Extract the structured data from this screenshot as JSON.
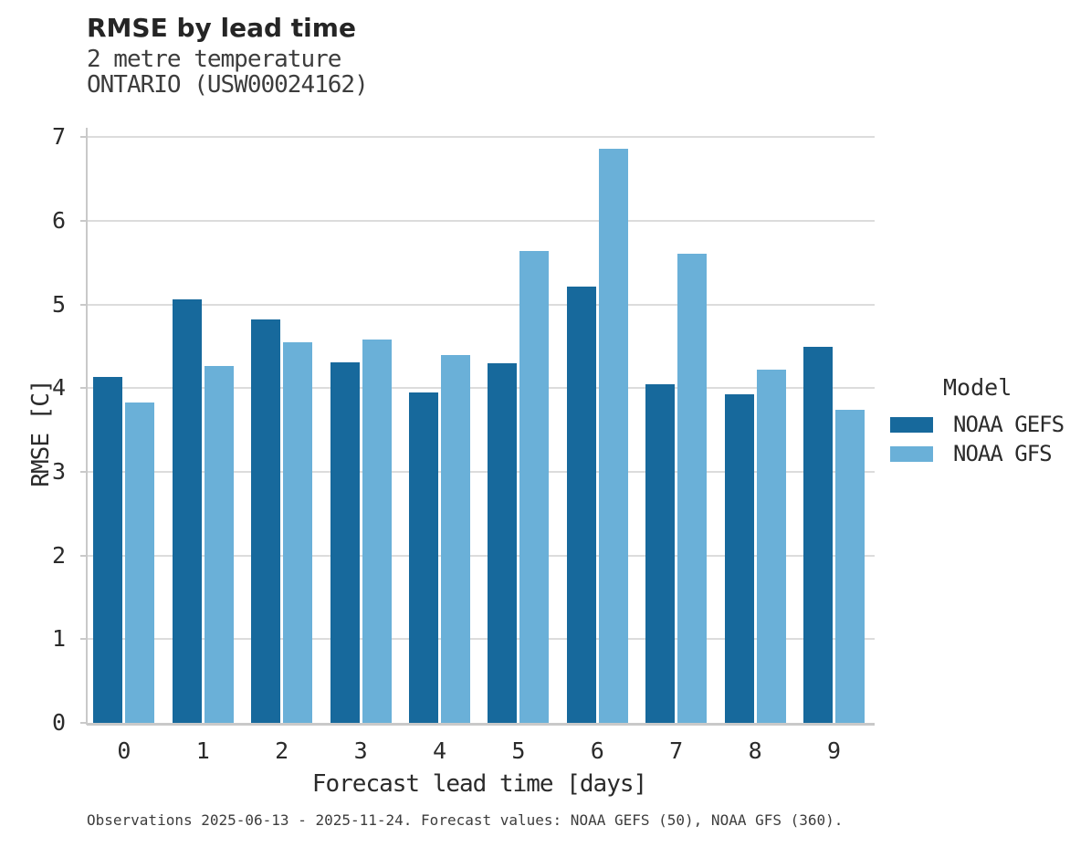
{
  "header": {
    "title": "RMSE by lead time",
    "subtitle_line1": "2 metre temperature",
    "subtitle_line2": "ONTARIO (USW00024162)"
  },
  "caption": "Observations 2025-06-13 - 2025-11-24. Forecast values: NOAA GEFS (50), NOAA GFS (360).",
  "chart_data": {
    "type": "bar",
    "title": "RMSE by lead time",
    "subtitle": [
      "2 metre temperature",
      "ONTARIO (USW00024162)"
    ],
    "xlabel": "Forecast lead time [days]",
    "ylabel": "RMSE [C]",
    "categories": [
      "0",
      "1",
      "2",
      "3",
      "4",
      "5",
      "6",
      "7",
      "8",
      "9"
    ],
    "series": [
      {
        "name": "NOAA GEFS",
        "color": "#17699c",
        "values": [
          4.14,
          5.06,
          4.82,
          4.31,
          3.95,
          4.3,
          5.21,
          4.05,
          3.93,
          4.49
        ]
      },
      {
        "name": "NOAA GFS",
        "color": "#6ab0d8",
        "values": [
          3.83,
          4.27,
          4.55,
          4.58,
          4.4,
          5.64,
          6.86,
          5.61,
          4.22,
          3.74
        ]
      }
    ],
    "ylim": [
      0,
      7
    ],
    "yticks": [
      0,
      1,
      2,
      3,
      4,
      5,
      6,
      7
    ],
    "grid": "horizontal",
    "gridline_color": "#dcdcdc",
    "legend_title": "Model",
    "legend_position": "right"
  }
}
